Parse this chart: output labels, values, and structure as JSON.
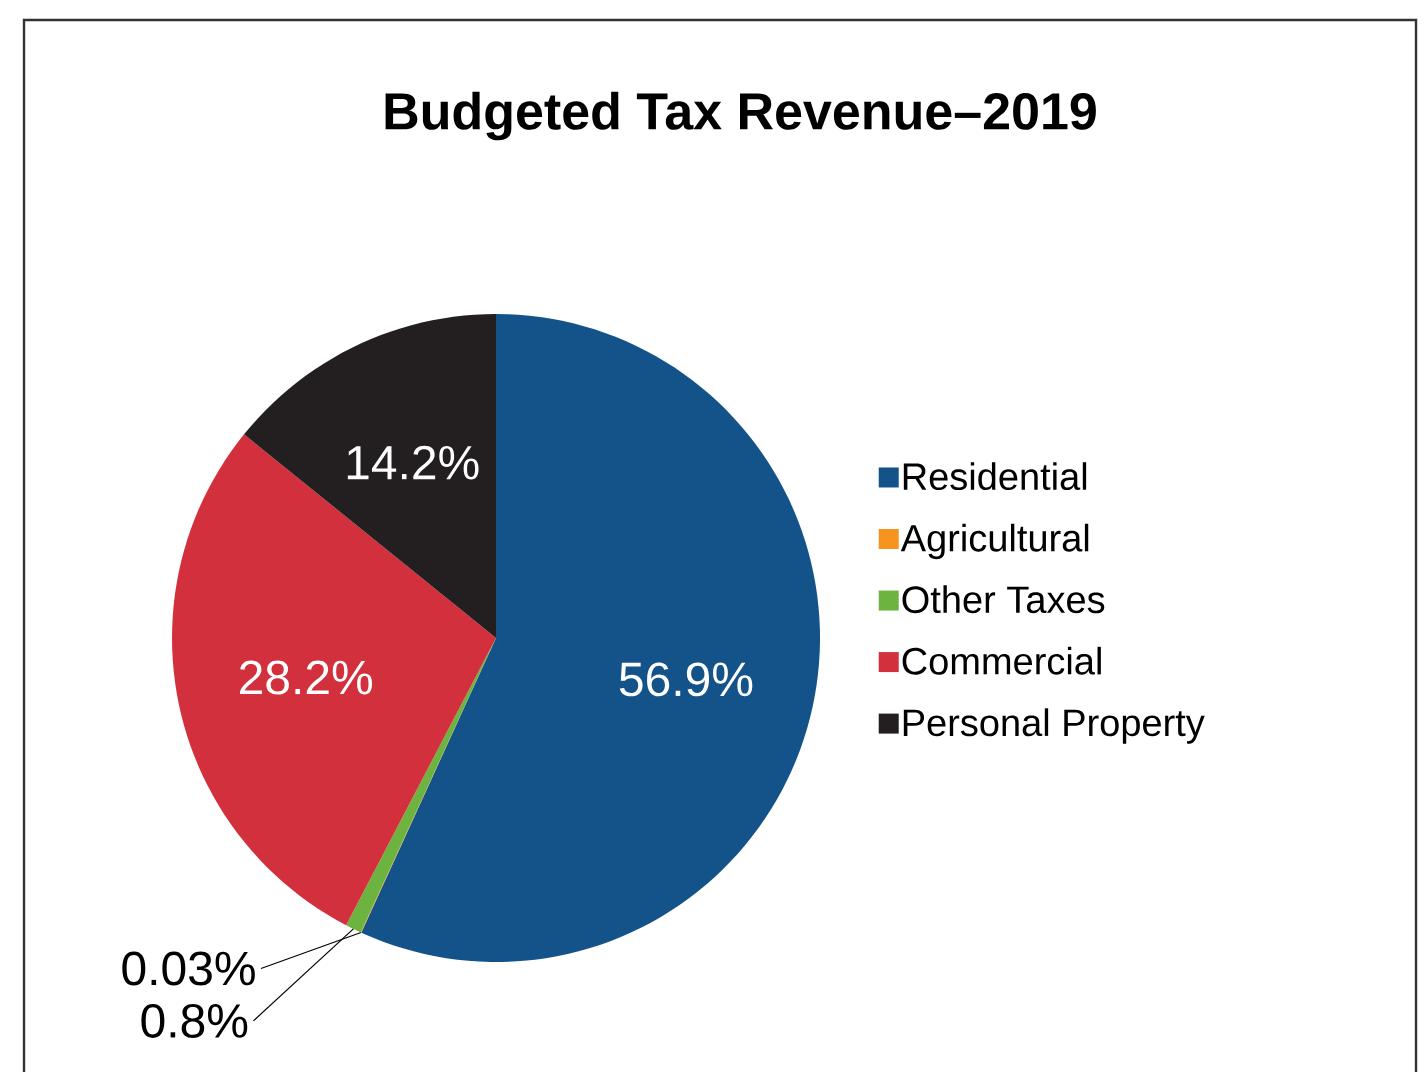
{
  "chart_data": {
    "type": "pie",
    "title": "Budgeted Tax Revenue–2019",
    "categories": [
      "Residential",
      "Agricultural",
      "Other Taxes",
      "Commercial",
      "Personal Property"
    ],
    "values": [
      56.9,
      0.03,
      0.8,
      28.2,
      14.2
    ],
    "value_labels": [
      "56.9%",
      "0.03%",
      "0.8%",
      "28.2%",
      "14.2%"
    ],
    "colors": [
      "#13538a",
      "#f7941d",
      "#6cb33f",
      "#d2303c",
      "#231f20"
    ],
    "legend": "right"
  }
}
